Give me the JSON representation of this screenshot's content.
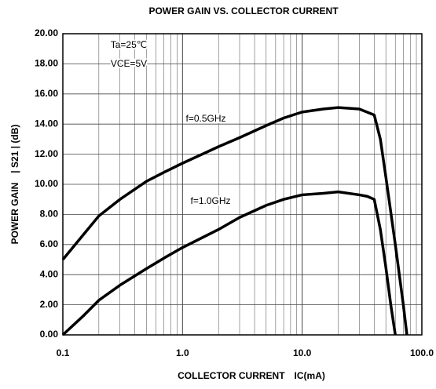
{
  "chart_data": {
    "type": "line",
    "title": "POWER GAIN VS. COLLECTOR CURRENT",
    "xlabel": "COLLECTOR CURRENT　IC(mA)",
    "ylabel": "POWER GAIN　| S21 | (dB)",
    "annotations": [
      "Ta=25℃",
      "VCE=5V",
      "f=0.5GHz",
      "f=1.0GHz"
    ],
    "xscale": "log",
    "grid": true,
    "xlim": [
      0.1,
      100
    ],
    "ylim": [
      0,
      20
    ],
    "xticks": [
      0.1,
      {
        "value": 1,
        "label": "1.0"
      },
      {
        "value": 10,
        "label": "10.0"
      },
      {
        "value": 100,
        "label": "100.0"
      }
    ],
    "yticks": [
      {
        "value": 0,
        "label": "0.00"
      },
      {
        "value": 2,
        "label": "2.00"
      },
      {
        "value": 4,
        "label": "4.00"
      },
      {
        "value": 6,
        "label": "6.00"
      },
      {
        "value": 8,
        "label": "8.00"
      },
      {
        "value": 10,
        "label": "10.00"
      },
      {
        "value": 12,
        "label": "12.00"
      },
      {
        "value": 14,
        "label": "14.00"
      },
      {
        "value": 16,
        "label": "16.00"
      },
      {
        "value": 18,
        "label": "18.00"
      },
      {
        "value": 20,
        "label": "20.00"
      }
    ],
    "series": [
      {
        "name": "f=0.5GHz",
        "color": "#000000",
        "x": [
          0.1,
          0.15,
          0.2,
          0.3,
          0.5,
          0.7,
          1,
          2,
          3,
          5,
          7,
          10,
          15,
          20,
          30,
          40,
          45,
          50,
          60,
          70,
          75
        ],
        "values": [
          5.0,
          6.7,
          7.9,
          9.0,
          10.2,
          10.8,
          11.4,
          12.5,
          13.1,
          13.9,
          14.4,
          14.8,
          15.0,
          15.1,
          15.0,
          14.6,
          13.0,
          10.5,
          6.0,
          2.0,
          0
        ]
      },
      {
        "name": "f=1.0GHz",
        "color": "#000000",
        "x": [
          0.1,
          0.15,
          0.2,
          0.3,
          0.5,
          0.7,
          1,
          2,
          3,
          5,
          7,
          10,
          15,
          20,
          30,
          35,
          40,
          45,
          50,
          55,
          60
        ],
        "values": [
          0,
          1.3,
          2.3,
          3.3,
          4.4,
          5.1,
          5.8,
          7.0,
          7.8,
          8.6,
          9.0,
          9.3,
          9.4,
          9.5,
          9.3,
          9.2,
          9.0,
          7.0,
          4.5,
          2.0,
          0
        ]
      }
    ]
  }
}
